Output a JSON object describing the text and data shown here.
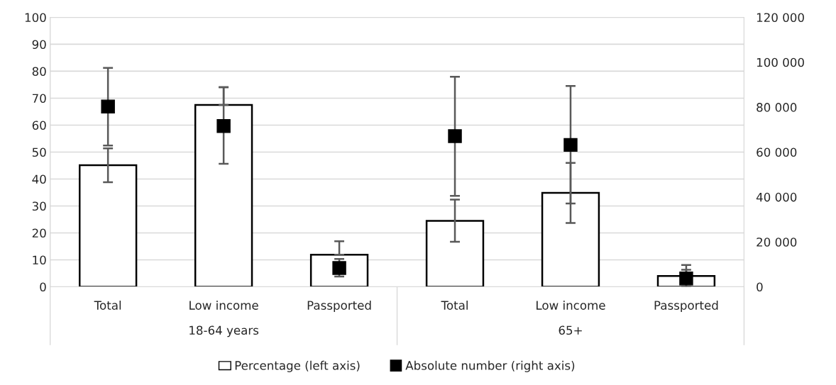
{
  "chart_data": {
    "type": "bar",
    "categories": [
      "Total",
      "Low income",
      "Passported",
      "Total",
      "Low income",
      "Passported"
    ],
    "series": [
      {
        "name": "Percentage (left axis)",
        "color": "#ffffff",
        "values": [
          45.1,
          67.5,
          11.9,
          24.5,
          34.9,
          4.0
        ],
        "errors": [
          [
            38.8,
            51.4
          ],
          [
            67.5,
            74.1
          ],
          [
            11.9,
            16.9
          ],
          [
            16.7,
            32.4
          ],
          [
            23.7,
            46.0
          ],
          [
            0.2,
            8.1
          ]
        ]
      },
      {
        "name": "Absolute number (right axis)",
        "type": "scatter",
        "axis": "y2",
        "marker": "square",
        "color": "#000000",
        "values": [
          80300,
          71600,
          8400,
          67100,
          63200,
          3700
        ],
        "errors": [
          [
            62900,
            97500
          ],
          [
            54800,
            88900
          ],
          [
            4600,
            12400
          ],
          [
            40500,
            93500
          ],
          [
            37100,
            89400
          ],
          [
            0,
            7600
          ]
        ]
      }
    ],
    "annotations": [
      "18-64 years",
      "65+"
    ],
    "ylim": [
      0,
      100
    ],
    "yticks": [
      0,
      10,
      20,
      30,
      40,
      50,
      60,
      70,
      80,
      90,
      100
    ],
    "y2lim": [
      0,
      120000
    ],
    "y2ticks": [
      {
        "value": 0,
        "label": "0"
      },
      {
        "value": 20000,
        "label": "20 000"
      },
      {
        "value": 40000,
        "label": "40 000"
      },
      {
        "value": 60000,
        "label": "60 000"
      },
      {
        "value": 80000,
        "label": "80 000"
      },
      {
        "value": 100000,
        "label": "100 000"
      },
      {
        "value": 120000,
        "label": "120 000"
      }
    ],
    "grid": "y",
    "legend": "bottom"
  }
}
